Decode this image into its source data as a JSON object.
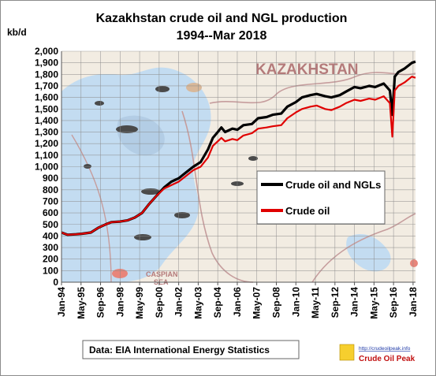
{
  "chart_data": {
    "type": "line",
    "title_lines": [
      "Kazakhstan crude oil and NGL production",
      "1994--Mar 2018"
    ],
    "ylabel": "kb/d",
    "ylim": [
      0,
      2000
    ],
    "yticks": [
      "0",
      "100",
      "200",
      "300",
      "400",
      "500",
      "600",
      "700",
      "800",
      "900",
      "1,000",
      "1,100",
      "1,200",
      "1,300",
      "1,400",
      "1,500",
      "1,600",
      "1,700",
      "1,800",
      "1,900",
      "2,000"
    ],
    "xticks": [
      "Jan-94",
      "May-95",
      "Sep-96",
      "Jan-98",
      "May-99",
      "Sep-00",
      "Jan-02",
      "May-03",
      "Sep-04",
      "Jan-06",
      "May-07",
      "Sep-08",
      "Jan-10",
      "May-11",
      "Sep-12",
      "Jan-14",
      "May-15",
      "Sep-16",
      "Jan-18"
    ],
    "x_range": [
      "1994-01",
      "2018-03"
    ],
    "grid": true,
    "legend_position": "right",
    "series": [
      {
        "name": "Crude oil and NGLs",
        "color": "#000000",
        "points": [
          [
            "1994-01",
            430
          ],
          [
            "1994-06",
            410
          ],
          [
            "1995-01",
            415
          ],
          [
            "1995-06",
            420
          ],
          [
            "1996-01",
            430
          ],
          [
            "1996-07",
            470
          ],
          [
            "1997-01",
            500
          ],
          [
            "1997-06",
            520
          ],
          [
            "1998-01",
            525
          ],
          [
            "1998-07",
            535
          ],
          [
            "1999-01",
            560
          ],
          [
            "1999-07",
            600
          ],
          [
            "2000-01",
            680
          ],
          [
            "2000-07",
            750
          ],
          [
            "2001-01",
            820
          ],
          [
            "2001-07",
            870
          ],
          [
            "2002-01",
            900
          ],
          [
            "2002-07",
            950
          ],
          [
            "2003-01",
            1000
          ],
          [
            "2003-07",
            1040
          ],
          [
            "2004-01",
            1150
          ],
          [
            "2004-05",
            1250
          ],
          [
            "2004-09",
            1300
          ],
          [
            "2004-12",
            1340
          ],
          [
            "2005-03",
            1300
          ],
          [
            "2005-09",
            1330
          ],
          [
            "2006-01",
            1320
          ],
          [
            "2006-06",
            1360
          ],
          [
            "2007-01",
            1370
          ],
          [
            "2007-06",
            1420
          ],
          [
            "2008-01",
            1430
          ],
          [
            "2008-06",
            1450
          ],
          [
            "2009-01",
            1460
          ],
          [
            "2009-06",
            1520
          ],
          [
            "2010-01",
            1560
          ],
          [
            "2010-06",
            1600
          ],
          [
            "2011-01",
            1620
          ],
          [
            "2011-06",
            1630
          ],
          [
            "2012-01",
            1610
          ],
          [
            "2012-06",
            1600
          ],
          [
            "2013-01",
            1620
          ],
          [
            "2013-06",
            1650
          ],
          [
            "2014-01",
            1690
          ],
          [
            "2014-06",
            1680
          ],
          [
            "2015-01",
            1700
          ],
          [
            "2015-06",
            1690
          ],
          [
            "2016-01",
            1720
          ],
          [
            "2016-06",
            1660
          ],
          [
            "2016-08",
            1450
          ],
          [
            "2016-10",
            1780
          ],
          [
            "2017-01",
            1820
          ],
          [
            "2017-06",
            1850
          ],
          [
            "2017-12",
            1900
          ],
          [
            "2018-03",
            1910
          ]
        ]
      },
      {
        "name": "Crude oil",
        "color": "#e00000",
        "points": [
          [
            "1994-01",
            430
          ],
          [
            "1994-06",
            410
          ],
          [
            "1995-01",
            415
          ],
          [
            "1995-06",
            420
          ],
          [
            "1996-01",
            430
          ],
          [
            "1996-07",
            470
          ],
          [
            "1997-01",
            500
          ],
          [
            "1997-06",
            520
          ],
          [
            "1998-01",
            525
          ],
          [
            "1998-07",
            535
          ],
          [
            "1999-01",
            560
          ],
          [
            "1999-07",
            600
          ],
          [
            "2000-01",
            680
          ],
          [
            "2000-07",
            750
          ],
          [
            "2001-01",
            810
          ],
          [
            "2001-07",
            840
          ],
          [
            "2002-01",
            870
          ],
          [
            "2002-07",
            920
          ],
          [
            "2003-01",
            970
          ],
          [
            "2003-07",
            1000
          ],
          [
            "2004-01",
            1080
          ],
          [
            "2004-05",
            1180
          ],
          [
            "2004-09",
            1220
          ],
          [
            "2004-12",
            1250
          ],
          [
            "2005-03",
            1220
          ],
          [
            "2005-09",
            1240
          ],
          [
            "2006-01",
            1230
          ],
          [
            "2006-06",
            1270
          ],
          [
            "2007-01",
            1290
          ],
          [
            "2007-06",
            1330
          ],
          [
            "2008-01",
            1340
          ],
          [
            "2008-06",
            1350
          ],
          [
            "2009-01",
            1360
          ],
          [
            "2009-06",
            1420
          ],
          [
            "2010-01",
            1470
          ],
          [
            "2010-06",
            1500
          ],
          [
            "2011-01",
            1520
          ],
          [
            "2011-06",
            1530
          ],
          [
            "2012-01",
            1500
          ],
          [
            "2012-06",
            1490
          ],
          [
            "2013-01",
            1520
          ],
          [
            "2013-06",
            1550
          ],
          [
            "2014-01",
            1580
          ],
          [
            "2014-06",
            1570
          ],
          [
            "2015-01",
            1590
          ],
          [
            "2015-06",
            1580
          ],
          [
            "2016-01",
            1610
          ],
          [
            "2016-06",
            1550
          ],
          [
            "2016-08",
            1260
          ],
          [
            "2016-10",
            1660
          ],
          [
            "2017-01",
            1700
          ],
          [
            "2017-06",
            1730
          ],
          [
            "2017-12",
            1780
          ],
          [
            "2018-03",
            1770
          ]
        ]
      }
    ],
    "background_map_labels": [
      "KAZAKHSTAN",
      "CASPIAN",
      "SEA"
    ],
    "source_note": "Data: EIA International Energy Statistics",
    "logo": {
      "url": "http://crudeoilpeak.info",
      "name": "Crude Oil Peak"
    }
  }
}
